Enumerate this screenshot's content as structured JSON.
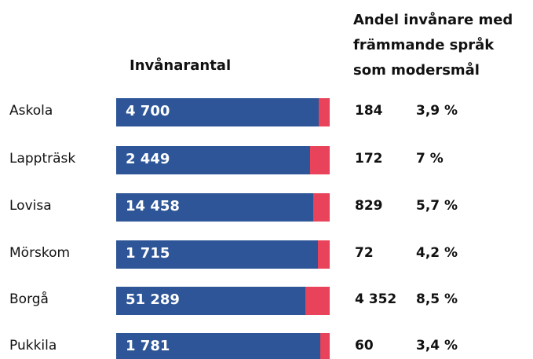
{
  "chart_data": {
    "type": "share-bar",
    "categories": [
      "Askola",
      "Lappträsk",
      "Lovisa",
      "Mörskom",
      "Borgå",
      "Pukkila"
    ],
    "series": [
      {
        "name": "Invånarantal",
        "color": "#2d5597",
        "values": [
          4700,
          2449,
          14458,
          1715,
          51289,
          1781
        ],
        "value_labels": [
          "4 700",
          "2 449",
          "14 458",
          "1 715",
          "51 289",
          "1 781"
        ]
      },
      {
        "name": "Andel invånare med främmande språk som modersmål",
        "color": "#e8435a",
        "values": [
          184,
          172,
          829,
          72,
          4352,
          60
        ],
        "value_labels": [
          "184",
          "172",
          "829",
          "72",
          "4 352",
          "60"
        ],
        "shares": [
          3.9,
          7,
          5.7,
          4.2,
          8.5,
          3.4
        ],
        "share_labels": [
          "3,9 %",
          "7 %",
          "5,7 %",
          "4,2 %",
          "8,5 %",
          "3,4 %"
        ]
      }
    ]
  }
}
